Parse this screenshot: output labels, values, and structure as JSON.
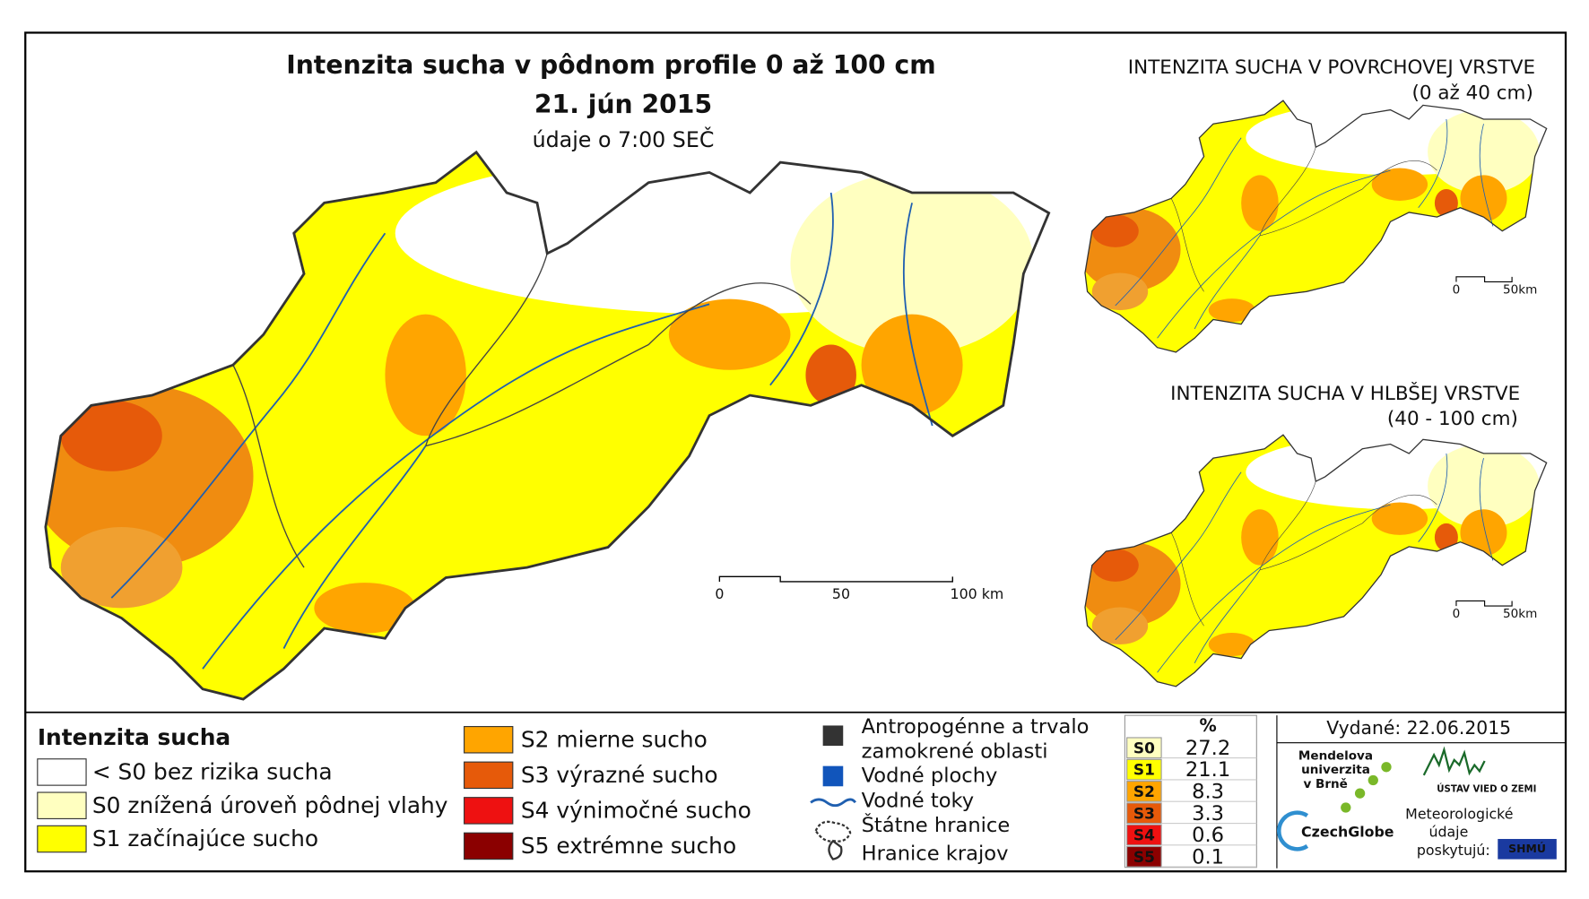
{
  "main_map": {
    "title": "Intenzita sucha v pôdnom profile 0 až 100 cm",
    "date": "21. jún 2015",
    "note": "údaje o 7:00 SEČ",
    "scale": [
      "0",
      "50",
      "100 km"
    ]
  },
  "inset_surface": {
    "title": "INTENZITA SUCHA V POVRCHOVEJ VRSTVE",
    "subtitle": "(0 až 40 cm)",
    "scale": [
      "0",
      "50km"
    ]
  },
  "inset_deep": {
    "title": "INTENZITA SUCHA V HLBŠEJ VRSTVE",
    "subtitle": "(40 - 100 cm)",
    "scale": [
      "0",
      "50km"
    ]
  },
  "legend": {
    "title": "Intenzita sucha",
    "classes": [
      {
        "label": "< S0 bez rizika sucha",
        "color": "#ffffff"
      },
      {
        "label": "S0 znížená úroveň pôdnej vlahy",
        "color": "#ffffc0"
      },
      {
        "label": "S1 začínajúce sucho",
        "color": "#ffff00"
      },
      {
        "label": "S2 mierne sucho",
        "color": "#ffa500"
      },
      {
        "label": "S3 výrazné sucho",
        "color": "#e65a0a"
      },
      {
        "label": "S4 výnimočné sucho",
        "color": "#ee1111"
      },
      {
        "label": "S5 extrémne sucho",
        "color": "#8b0000"
      }
    ],
    "other": [
      "Antropogénne a trvalo",
      "zamokrené oblasti",
      "Vodné plochy",
      "Vodné toky",
      "Štátne hranice",
      "Hranice krajov"
    ]
  },
  "table": {
    "header": "%",
    "rows": [
      [
        "S0",
        27.2
      ],
      [
        "S1",
        21.1
      ],
      [
        "S2",
        8.3
      ],
      [
        "S3",
        3.3
      ],
      [
        "S4",
        0.6
      ],
      [
        "S5",
        0.1
      ]
    ]
  },
  "footer": {
    "issued": "Vydané: 22.06.2015",
    "mendel": [
      "Mendelova",
      "univerzita",
      "v Brně"
    ],
    "czechglobe": "CzechGlobe",
    "ustav": "ÚSTAV VIED O ZEMI",
    "meteo": [
      "Meteorologické",
      "údaje",
      "poskytujú:"
    ],
    "shmu": "SHMÚ"
  }
}
